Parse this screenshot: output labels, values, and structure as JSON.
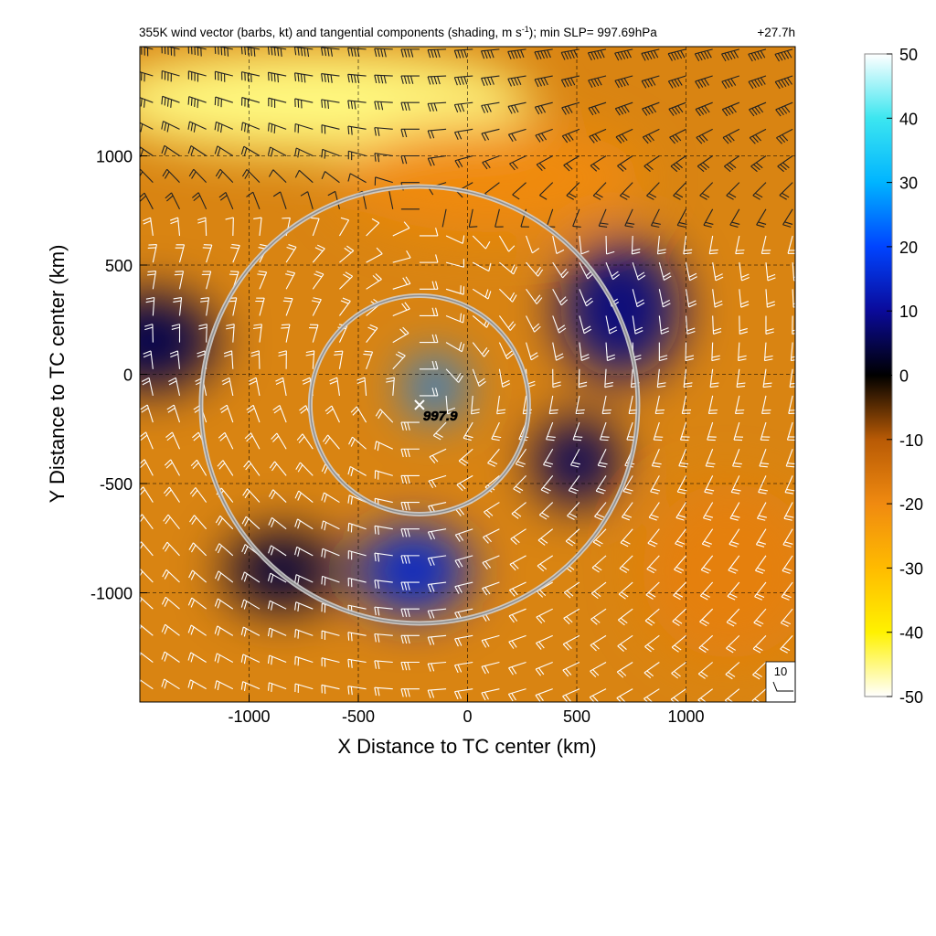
{
  "chart_data": {
    "type": "heatmap",
    "title": "355K wind vector (barbs, kt) and tangential components (shading, m s",
    "title_sup": "-1",
    "title_tail": "); min SLP= 997.69hPa",
    "time_label": "+27.7h",
    "xlabel": "X Distance to TC center (km)",
    "ylabel": "Y Distance to TC center (km)",
    "xlim": [
      -1500,
      1500
    ],
    "ylim": [
      -1500,
      1500
    ],
    "xticks": [
      -1000,
      -500,
      0,
      500,
      1000
    ],
    "yticks": [
      -1000,
      -500,
      0,
      500,
      1000
    ],
    "grid": true,
    "colorbar": {
      "ticks": [
        50,
        40,
        30,
        20,
        10,
        0,
        -10,
        -20,
        -30,
        -40,
        -50
      ],
      "range": [
        -50,
        50
      ],
      "stops": [
        {
          "v": -50,
          "c": "#ffffff"
        },
        {
          "v": -40,
          "c": "#fff200"
        },
        {
          "v": -30,
          "c": "#ffbb00"
        },
        {
          "v": -20,
          "c": "#f08a10"
        },
        {
          "v": -10,
          "c": "#b85a05"
        },
        {
          "v": 0,
          "c": "#000000"
        },
        {
          "v": 10,
          "c": "#0a0a9a"
        },
        {
          "v": 20,
          "c": "#0044ff"
        },
        {
          "v": 30,
          "c": "#00b4ff"
        },
        {
          "v": 40,
          "c": "#3ce6f0"
        },
        {
          "v": 50,
          "c": "#ffffff"
        }
      ]
    },
    "center_marker": {
      "x": -220,
      "y": -140,
      "label": "997.9"
    },
    "range_rings": {
      "center_x": -220,
      "center_y": -140,
      "radii_km": [
        500,
        1000
      ]
    },
    "reference_vector": {
      "label": "10"
    },
    "field_features": [
      {
        "type": "positive",
        "x": -150,
        "y": -60,
        "value": 25,
        "rx": 130,
        "ry": 140
      },
      {
        "type": "positive",
        "x": -250,
        "y": -900,
        "value": 15,
        "rx": 260,
        "ry": 200
      },
      {
        "type": "positive",
        "x": 700,
        "y": 300,
        "value": 8,
        "rx": 280,
        "ry": 320
      },
      {
        "type": "positive",
        "x": 500,
        "y": -400,
        "value": 6,
        "rx": 200,
        "ry": 200
      },
      {
        "type": "positive",
        "x": -1450,
        "y": 150,
        "value": 5,
        "rx": 300,
        "ry": 220
      },
      {
        "type": "positive",
        "x": -850,
        "y": -900,
        "value": 4,
        "rx": 260,
        "ry": 180
      },
      {
        "type": "negative",
        "x": -700,
        "y": 1250,
        "value": -45,
        "rx": 1000,
        "ry": 230
      },
      {
        "type": "negative",
        "x": 100,
        "y": 900,
        "value": -20,
        "rx": 700,
        "ry": 250
      },
      {
        "type": "negative",
        "x": 1200,
        "y": -900,
        "value": -18,
        "rx": 400,
        "ry": 400
      }
    ]
  }
}
